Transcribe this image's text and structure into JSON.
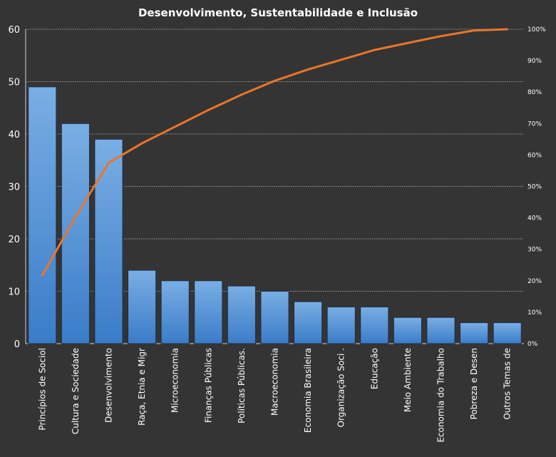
{
  "chart_data": {
    "type": "bar",
    "title": "Desenvolvimento,  Sustentabilidade  e Inclusão",
    "categories": [
      "Princípios de Sociol",
      "Cultura e Sociedade",
      "Desenvolvimento",
      "Raça, Etnia e Migr",
      "Microeconomia",
      "Finanças Públicas",
      "Políticas Públicas.",
      "Macroeconomia",
      "Economia Brasileira",
      "Organização Soci .",
      "Educação",
      "Meio Ambiente",
      "Economia do Trabalho",
      "Pobreza e Desen",
      "Outros Temas de"
    ],
    "series": [
      {
        "type": "bar",
        "axis": "left",
        "values": [
          49,
          42,
          39,
          14,
          12,
          12,
          11,
          10,
          8,
          7,
          7,
          5,
          5,
          4,
          4
        ]
      },
      {
        "type": "line",
        "axis": "right",
        "values": [
          21.7,
          40.3,
          57.5,
          63.7,
          69.0,
          74.3,
          79.2,
          83.6,
          87.2,
          90.3,
          93.4,
          95.6,
          97.8,
          99.6,
          100.0
        ]
      }
    ],
    "ylim": [
      0,
      60
    ],
    "yticks": [
      "0",
      "10",
      "20",
      "30",
      "40",
      "50",
      "60"
    ],
    "y2lim": [
      0,
      100
    ],
    "y2ticks": [
      "0%",
      "10%",
      "20%",
      "30%",
      "40%",
      "50%",
      "60%",
      "70%",
      "80%",
      "90%",
      "100%"
    ],
    "grid": true,
    "colors": {
      "background": "#343434",
      "bar_top": "#7aaee4",
      "bar_bottom": "#3a7cc8",
      "bar_edge": "#1c2f48",
      "line": "#e8762c",
      "grid": "#bdbdbd",
      "text": "#ffffff"
    }
  }
}
